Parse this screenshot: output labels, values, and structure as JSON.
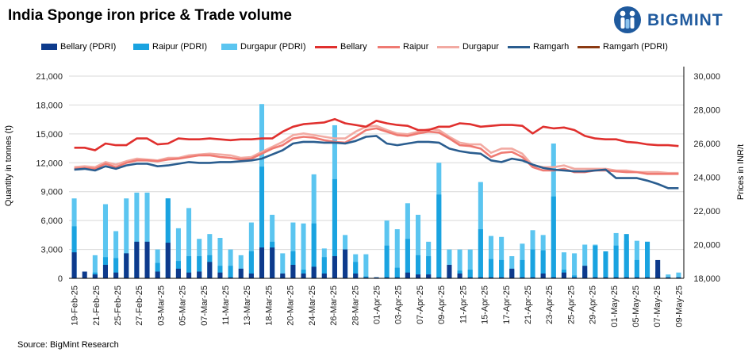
{
  "header": {
    "title": "India Sponge iron price & Trade volume",
    "brand": "BIGMINT"
  },
  "footer": {
    "source": "Source: BigMint Research"
  },
  "chart_data": {
    "type": "bar-line combo",
    "title": "India Sponge iron price & Trade volume",
    "left_axis": {
      "label": "Quantity in tonnes (t)",
      "range": [
        0,
        21000
      ],
      "ticks": [
        "0",
        "3,000",
        "6,000",
        "9,000",
        "12,000",
        "15,000",
        "18,000",
        "21,000"
      ]
    },
    "right_axis": {
      "label": "Prices in INR/t",
      "range": [
        18000,
        30000
      ],
      "ticks": [
        "18,000",
        "20,000",
        "22,000",
        "24,000",
        "26,000",
        "28,000",
        "30,000"
      ]
    },
    "colors": {
      "bellary_bar": "#0d3a8c",
      "raipur_bar": "#1aa3e0",
      "durgapur_bar": "#5bc5f0",
      "bellary_line": "#e0302e",
      "raipur_line": "#ef7a72",
      "durgapur_line": "#f2aaa2",
      "ramgarh_line": "#2a5d8f",
      "ramgarh_pdri_line": "#8b3a12",
      "grid": "#d9d9d9"
    },
    "legend": [
      {
        "name": "Bellary (PDRI)",
        "kind": "bar",
        "color": "#0d3a8c"
      },
      {
        "name": "Raipur (PDRI)",
        "kind": "bar",
        "color": "#1aa3e0"
      },
      {
        "name": "Durgapur (PDRI)",
        "kind": "bar",
        "color": "#5bc5f0"
      },
      {
        "name": "Bellary",
        "kind": "line",
        "color": "#e0302e"
      },
      {
        "name": "Raipur",
        "kind": "line",
        "color": "#ef7a72"
      },
      {
        "name": "Durgapur",
        "kind": "line",
        "color": "#f2aaa2"
      },
      {
        "name": "Ramgarh",
        "kind": "line",
        "color": "#2a5d8f"
      },
      {
        "name": "Ramgarh (PDRI)",
        "kind": "line",
        "color": "#8b3a12"
      }
    ],
    "tick_labels": [
      "19-Feb-25",
      "21-Feb-25",
      "25-Feb-25",
      "27-Feb-25",
      "03-Mar-25",
      "05-Mar-25",
      "07-Mar-25",
      "11-Mar-25",
      "13-Mar-25",
      "18-Mar-25",
      "20-Mar-25",
      "24-Mar-25",
      "26-Mar-25",
      "28-Mar-25",
      "01-Apr-25",
      "03-Apr-25",
      "07-Apr-25",
      "09-Apr-25",
      "11-Apr-25",
      "15-Apr-25",
      "17-Apr-25",
      "21-Apr-25",
      "23-Apr-25",
      "25-Apr-25",
      "29-Apr-25",
      "01-May-25",
      "05-May-25",
      "07-May-25",
      "09-May-25"
    ],
    "bars": {
      "bellary": [
        2700,
        700,
        400,
        1400,
        600,
        2600,
        3800,
        3800,
        700,
        3700,
        1000,
        600,
        700,
        1700,
        600,
        100,
        1000,
        500,
        3200,
        3200,
        500,
        1400,
        500,
        1200,
        500,
        2300,
        3000,
        500,
        100,
        100,
        100,
        100,
        600,
        400,
        400,
        100,
        1400,
        500,
        100,
        100,
        100,
        100,
        1000,
        100,
        100,
        500,
        100,
        600,
        100,
        1300,
        100,
        100,
        100,
        100,
        100,
        100,
        1900,
        100,
        100
      ],
      "raipur": [
        5400,
        0,
        600,
        2200,
        2100,
        2600,
        3800,
        3800,
        1600,
        8300,
        1800,
        2300,
        2300,
        2400,
        1300,
        1300,
        100,
        2800,
        11600,
        3800,
        300,
        2800,
        900,
        5700,
        2200,
        10300,
        1900,
        1700,
        200,
        100,
        3400,
        1100,
        4100,
        2400,
        2300,
        8700,
        800,
        800,
        900,
        5100,
        2000,
        1900,
        900,
        1900,
        3000,
        2900,
        8500,
        900,
        300,
        800,
        3400,
        2800,
        3400,
        4600,
        1900,
        3800,
        200,
        100,
        100
      ],
      "durgapur": [
        8300,
        0,
        2400,
        7700,
        4900,
        8300,
        8900,
        8900,
        3000,
        8300,
        5200,
        7300,
        4100,
        4600,
        4200,
        3000,
        2400,
        5800,
        18100,
        6600,
        2600,
        5800,
        5700,
        10800,
        3100,
        15900,
        4500,
        2500,
        2500,
        100,
        6000,
        5100,
        7800,
        6600,
        3800,
        12000,
        3000,
        3000,
        3000,
        10000,
        4400,
        4300,
        2300,
        3600,
        5000,
        4500,
        14000,
        2700,
        2600,
        3500,
        3500,
        2800,
        4700,
        3900,
        3900,
        3800,
        700,
        400,
        600
      ]
    },
    "lines": {
      "bellary": [
        25750,
        25750,
        25600,
        26000,
        25900,
        25900,
        26300,
        26300,
        25950,
        26000,
        26300,
        26250,
        26250,
        26300,
        26250,
        26200,
        26250,
        26250,
        26300,
        26300,
        26700,
        27000,
        27150,
        27200,
        27250,
        27450,
        27200,
        27100,
        27000,
        27350,
        27200,
        27100,
        27050,
        26800,
        26800,
        27000,
        27000,
        27200,
        27150,
        27000,
        27050,
        27100,
        27100,
        27050,
        26600,
        27000,
        26900,
        26950,
        26800,
        26450,
        26300,
        26250,
        26250,
        26100,
        26050,
        25950,
        25900,
        25900,
        25850
      ],
      "raipur": [
        24500,
        24550,
        24500,
        24800,
        24600,
        24850,
        25000,
        25000,
        24950,
        25050,
        25100,
        25200,
        25300,
        25300,
        25200,
        25150,
        25050,
        25100,
        25400,
        25700,
        25900,
        26300,
        26400,
        26350,
        26200,
        26100,
        26050,
        26400,
        26800,
        26900,
        26700,
        26500,
        26450,
        26600,
        26700,
        26650,
        26300,
        25900,
        25850,
        25700,
        25200,
        25450,
        25500,
        25200,
        24600,
        24400,
        24400,
        24500,
        24300,
        24300,
        24400,
        24400,
        24350,
        24300,
        24300,
        24200,
        24200,
        24200,
        24200
      ],
      "durgapur": [
        24600,
        24650,
        24600,
        24900,
        24750,
        24950,
        25100,
        25050,
        25000,
        25150,
        25150,
        25300,
        25350,
        25400,
        25350,
        25300,
        25150,
        25200,
        25500,
        25800,
        26100,
        26500,
        26600,
        26500,
        26400,
        26300,
        26300,
        26700,
        27000,
        27050,
        26800,
        26600,
        26550,
        26700,
        26850,
        26800,
        26400,
        26050,
        25950,
        25950,
        25450,
        25700,
        25700,
        25400,
        24700,
        24600,
        24600,
        24700,
        24500,
        24500,
        24500,
        24500,
        24400,
        24400,
        24300,
        24300,
        24300,
        24250,
        24250
      ],
      "ramgarh": [
        24450,
        24500,
        24400,
        24650,
        24500,
        24700,
        24800,
        24800,
        24650,
        24700,
        24800,
        24900,
        24850,
        24850,
        24900,
        24900,
        24950,
        25000,
        25100,
        25350,
        25600,
        26000,
        26100,
        26100,
        26050,
        26050,
        26000,
        26150,
        26400,
        26450,
        26000,
        25900,
        26000,
        26100,
        26100,
        26050,
        25700,
        25550,
        25450,
        25400,
        25000,
        24900,
        25100,
        25000,
        24750,
        24550,
        24450,
        24400,
        24350,
        24350,
        24400,
        24450,
        23950,
        23950,
        23950,
        23800,
        23600,
        23350,
        23350
      ]
    }
  }
}
